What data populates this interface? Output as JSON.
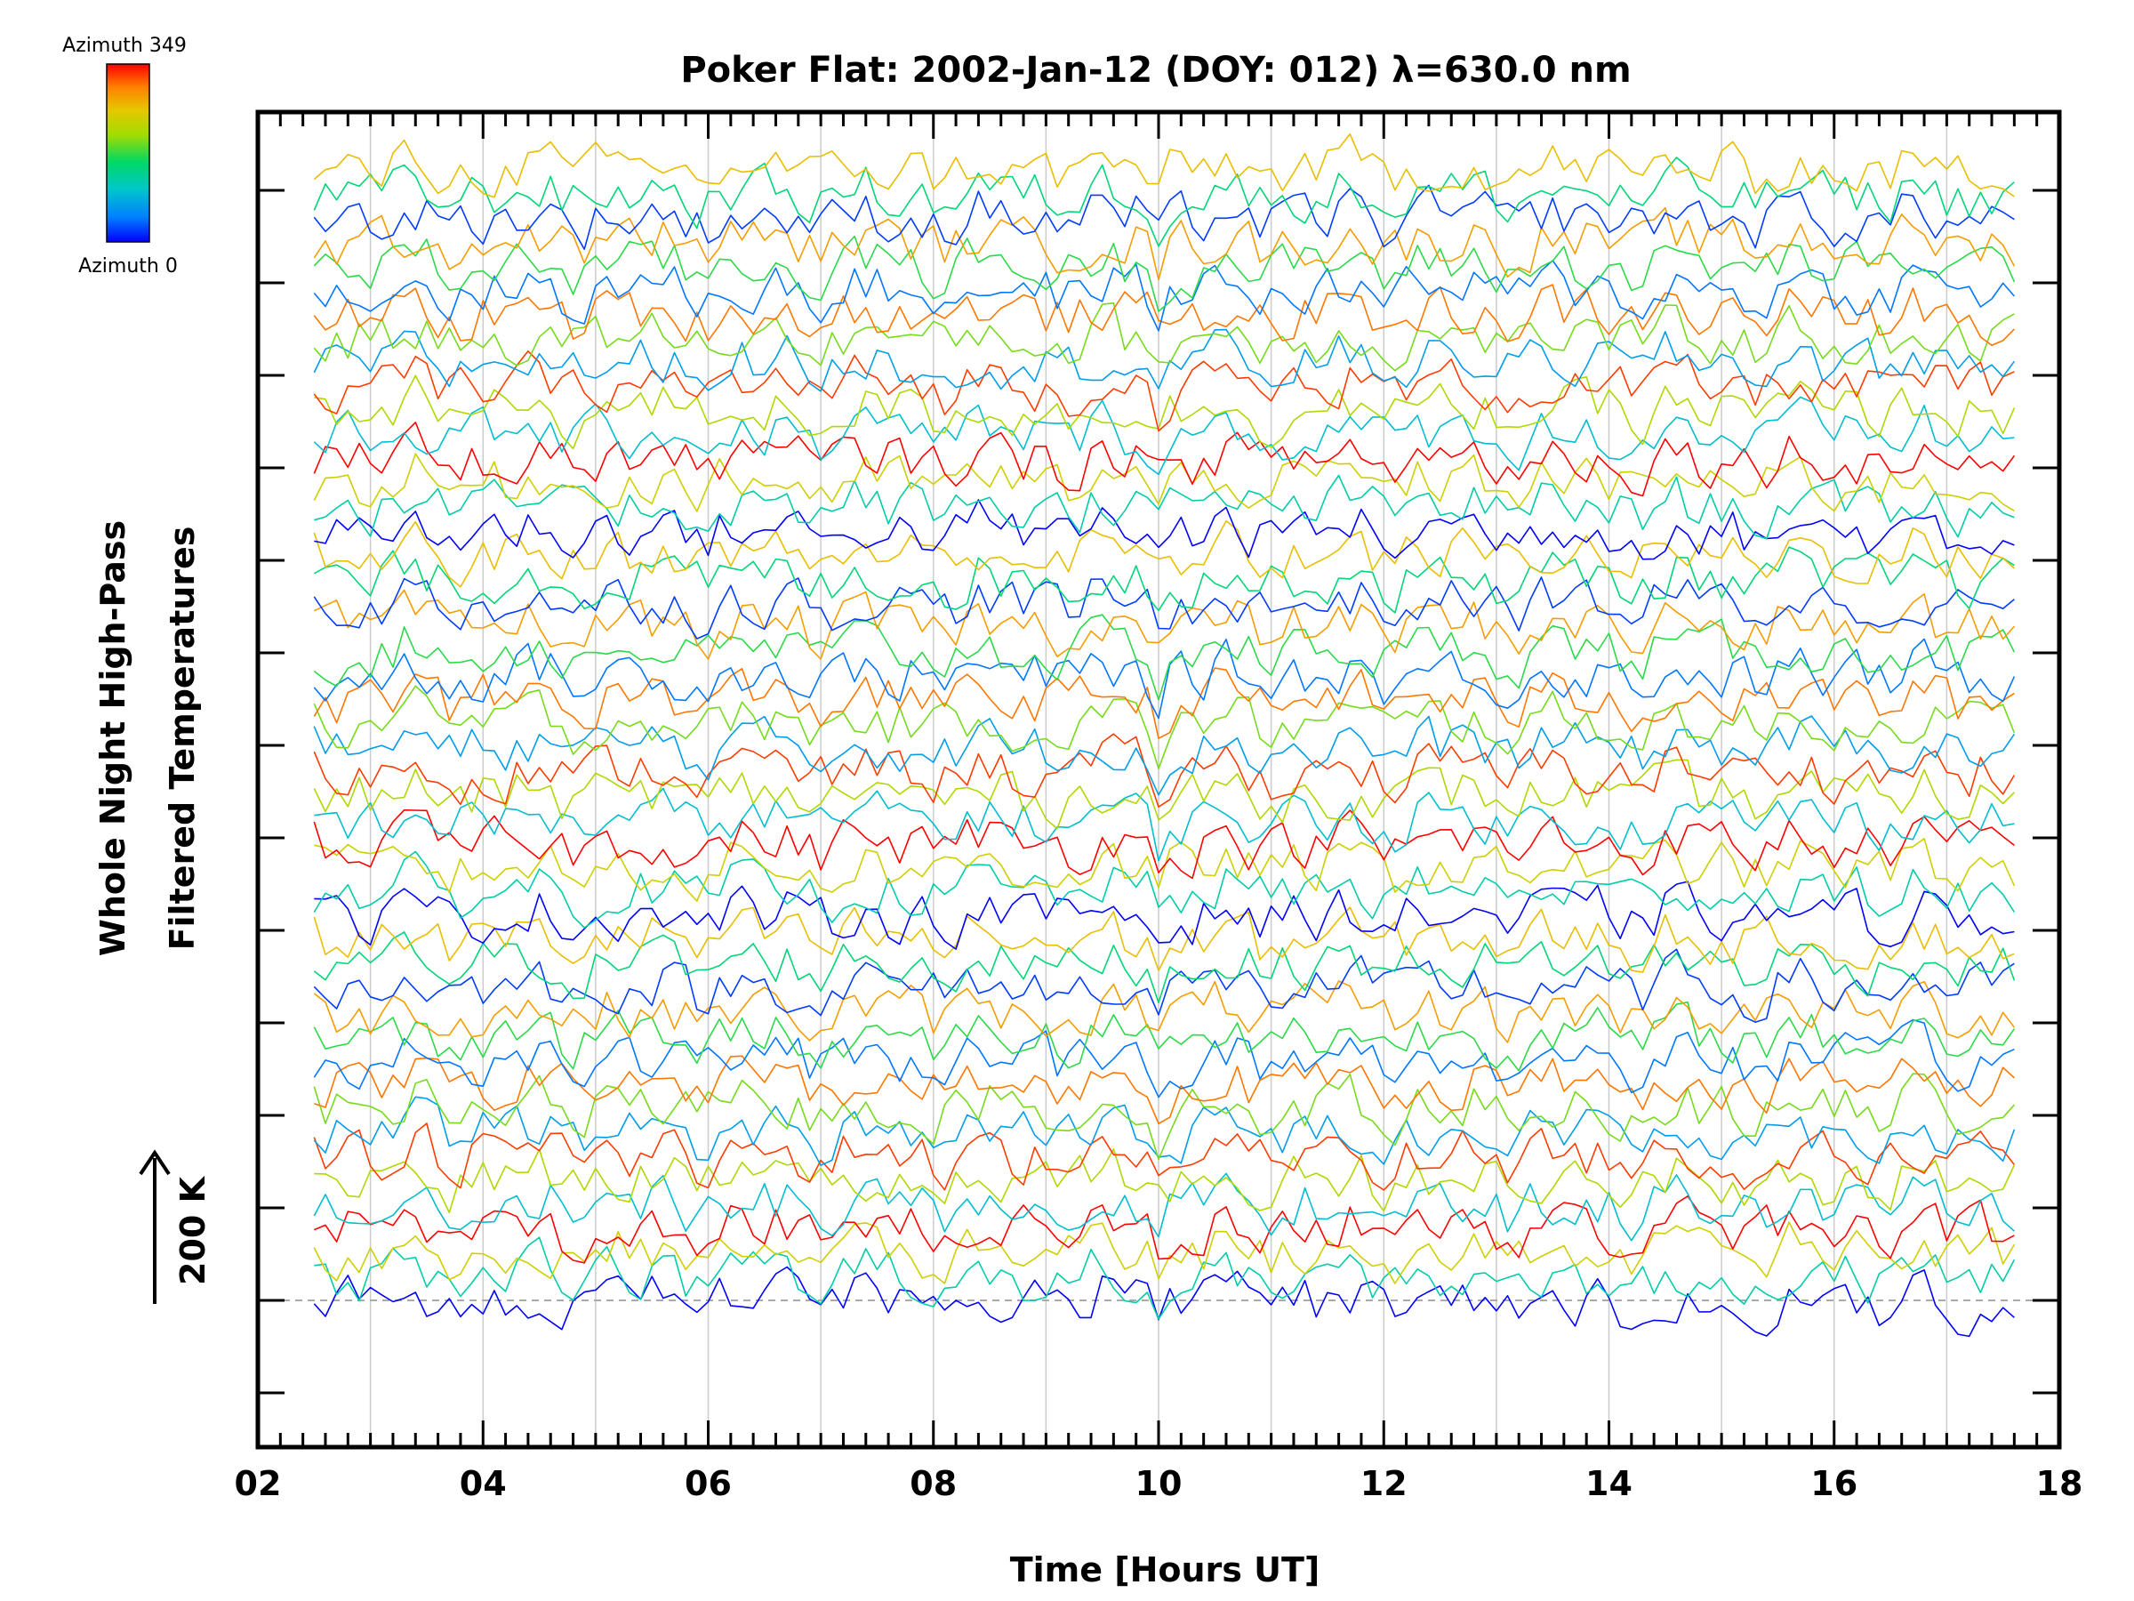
{
  "chart_data": {
    "type": "line",
    "title": "Poker Flat: 2002-Jan-12 (DOY: 012) λ=630.0 nm",
    "xlabel": "Time [Hours UT]",
    "ylabel_line1": "Whole Night High-Pass",
    "ylabel_line2": "Filtered Temperatures",
    "scale_label": "200 K",
    "scale_kelvin": 200,
    "xlim": [
      2,
      18
    ],
    "x_ticks": [
      "02",
      "04",
      "06",
      "08",
      "10",
      "12",
      "14",
      "16",
      "18"
    ],
    "x_tick_values": [
      2,
      4,
      6,
      8,
      10,
      12,
      14,
      16,
      18
    ],
    "x_minor_step_hours": 0.2,
    "vertical_grid_hours": [
      3,
      4,
      5,
      6,
      7,
      8,
      9,
      10,
      11,
      12,
      13,
      14,
      15,
      16,
      17
    ],
    "grid": true,
    "data_time_range": [
      2.5,
      17.6
    ],
    "sample_count": 152,
    "series_count": 48,
    "series_offset_kelvin": 50,
    "temperature_fluctuation_range_kelvin": [
      -45,
      45
    ],
    "colorbar": {
      "top_label": "Azimuth 349",
      "bottom_label": "Azimuth 0",
      "azimuth_range": [
        0,
        349
      ],
      "colors": [
        "#0000ff",
        "#0080ff",
        "#00c8c8",
        "#00d864",
        "#a0dc00",
        "#e6c800",
        "#ff8000",
        "#ff0000"
      ]
    },
    "colors": {
      "axes": "#000000",
      "grid": "#cccccc",
      "baseline": "#aaaaaa"
    }
  }
}
